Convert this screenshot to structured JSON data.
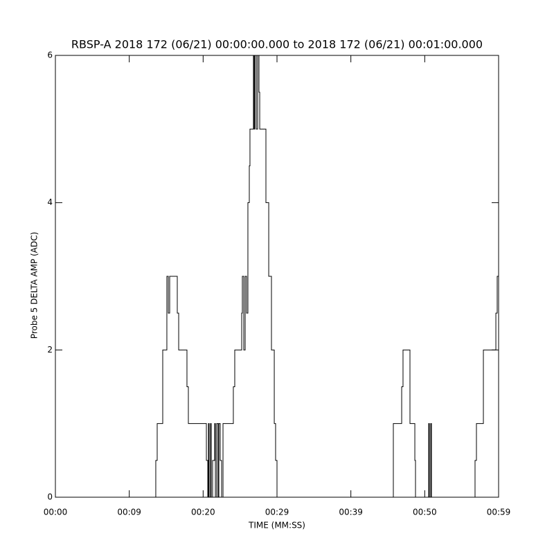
{
  "chart_data": {
    "type": "line",
    "title": "RBSP-A 2018 172 (06/21) 00:00:00.000 to 2018 172 (06/21) 00:01:00.000",
    "xlabel": "TIME (MM:SS)",
    "ylabel": "Probe 5 DELTA AMP (ADC)",
    "xlim": [
      0,
      60
    ],
    "ylim": [
      0,
      6
    ],
    "xticks": [
      {
        "value": 0,
        "label": "00:00"
      },
      {
        "value": 10,
        "label": "00:09"
      },
      {
        "value": 20,
        "label": "00:20"
      },
      {
        "value": 30,
        "label": "00:29"
      },
      {
        "value": 40,
        "label": "00:39"
      },
      {
        "value": 50,
        "label": "00:50"
      },
      {
        "value": 60,
        "label": "00:59"
      }
    ],
    "yticks": [
      0,
      2,
      4,
      6
    ],
    "color": "#000000",
    "x": [
      0,
      13.59,
      13.59,
      13.78,
      13.78,
      14.53,
      14.53,
      15.09,
      15.09,
      15.28,
      15.28,
      15.47,
      15.47,
      16.5,
      16.5,
      16.69,
      16.69,
      17.81,
      17.81,
      18.0,
      18.0,
      20.44,
      20.44,
      20.63,
      20.63,
      20.72,
      20.72,
      20.81,
      20.81,
      21.0,
      21.0,
      21.09,
      21.09,
      21.28,
      21.28,
      21.56,
      21.56,
      21.66,
      21.66,
      21.84,
      21.84,
      22.03,
      22.03,
      22.13,
      22.13,
      22.31,
      22.31,
      22.5,
      22.5,
      22.69,
      22.69,
      24.09,
      24.09,
      24.28,
      24.28,
      25.22,
      25.22,
      25.31,
      25.31,
      25.5,
      25.5,
      25.69,
      25.69,
      25.88,
      25.88,
      26.06,
      26.06,
      26.25,
      26.25,
      26.34,
      26.34,
      26.81,
      26.81,
      26.91,
      26.91,
      27.0,
      27.0,
      27.19,
      27.19,
      27.38,
      27.38,
      27.56,
      27.56,
      27.66,
      27.66,
      28.5,
      28.5,
      28.88,
      28.88,
      29.25,
      29.25,
      29.63,
      29.63,
      29.81,
      29.81,
      30.0,
      30.0,
      45.75,
      45.75,
      46.88,
      46.88,
      47.06,
      47.06,
      48.0,
      48.0,
      48.66,
      48.66,
      48.75,
      48.75,
      50.53,
      50.53,
      50.63,
      50.63,
      50.81,
      50.81,
      50.91,
      50.91,
      56.81,
      56.81,
      57.0,
      57.0,
      57.94,
      57.94,
      59.63,
      59.63,
      59.81,
      59.81,
      60
    ],
    "values": [
      0,
      0,
      0.5,
      0.5,
      1,
      1,
      2,
      2,
      3,
      3,
      2.5,
      2.5,
      3,
      3,
      2.5,
      2.5,
      2,
      2,
      1.5,
      1.5,
      1,
      1,
      0.5,
      0.5,
      0,
      0,
      1,
      1,
      0,
      0,
      1,
      1,
      0,
      0,
      0.5,
      0.5,
      1,
      1,
      0,
      0,
      1,
      1,
      0,
      0,
      1,
      1,
      0.5,
      0.5,
      0,
      0,
      1,
      1,
      1.5,
      1.5,
      2,
      2,
      2.5,
      2.5,
      3,
      3,
      2,
      2,
      3,
      3,
      2.5,
      2.5,
      4,
      4,
      4.5,
      4.5,
      5,
      5,
      6,
      6,
      5,
      5,
      6,
      6,
      5,
      5,
      6,
      6,
      5.5,
      5.5,
      5,
      5,
      4,
      4,
      3,
      3,
      2,
      2,
      1,
      1,
      0.5,
      0.5,
      0,
      0,
      1,
      1,
      1.5,
      1.5,
      2,
      2,
      1,
      1,
      0.5,
      0.5,
      0,
      0,
      1,
      1,
      0,
      0,
      1,
      1,
      0,
      0,
      0.5,
      0.5,
      1,
      1,
      2,
      2,
      2.5,
      2.5,
      3,
      3
    ]
  }
}
